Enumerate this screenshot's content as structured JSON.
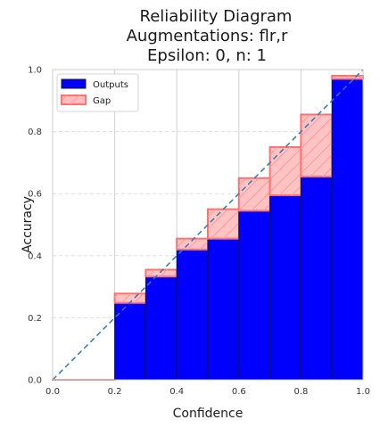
{
  "chart_data": {
    "type": "bar",
    "title": [
      "Reliability Diagram",
      "Augmentations: flr,r",
      "Epsilon: 0, n: 1"
    ],
    "xlabel": "Confidence",
    "ylabel": "Accuracy",
    "xlim": [
      0,
      1
    ],
    "ylim": [
      0,
      1
    ],
    "xticks": [
      "0.0",
      "0.2",
      "0.4",
      "0.6",
      "0.8",
      "1.0"
    ],
    "yticks": [
      "0.0",
      "0.2",
      "0.4",
      "0.6",
      "0.8",
      "1.0"
    ],
    "grid": true,
    "legend_position": "top-left",
    "bins": [
      {
        "x_start": 0.0,
        "x_end": 0.1,
        "accuracy": 0.0,
        "expected": 0.0
      },
      {
        "x_start": 0.1,
        "x_end": 0.2,
        "accuracy": 0.0,
        "expected": 0.0
      },
      {
        "x_start": 0.2,
        "x_end": 0.3,
        "accuracy": 0.248,
        "expected": 0.278
      },
      {
        "x_start": 0.3,
        "x_end": 0.4,
        "accuracy": 0.333,
        "expected": 0.355
      },
      {
        "x_start": 0.4,
        "x_end": 0.5,
        "accuracy": 0.42,
        "expected": 0.455
      },
      {
        "x_start": 0.5,
        "x_end": 0.6,
        "accuracy": 0.455,
        "expected": 0.55
      },
      {
        "x_start": 0.6,
        "x_end": 0.7,
        "accuracy": 0.545,
        "expected": 0.65
      },
      {
        "x_start": 0.7,
        "x_end": 0.8,
        "accuracy": 0.595,
        "expected": 0.75
      },
      {
        "x_start": 0.8,
        "x_end": 0.9,
        "accuracy": 0.655,
        "expected": 0.855
      },
      {
        "x_start": 0.9,
        "x_end": 1.0,
        "accuracy": 0.97,
        "expected": 0.98
      }
    ],
    "series": [
      {
        "name": "Outputs",
        "color": "#0000ff",
        "edge_color": "#1a1a1a"
      },
      {
        "name": "Gap",
        "color": "#ffbcbc",
        "edge_color": "#ff7070"
      }
    ],
    "diagonal": {
      "from": [
        0,
        0
      ],
      "to": [
        1,
        1
      ],
      "color": "#2b7bb9",
      "style": "dashed"
    }
  }
}
